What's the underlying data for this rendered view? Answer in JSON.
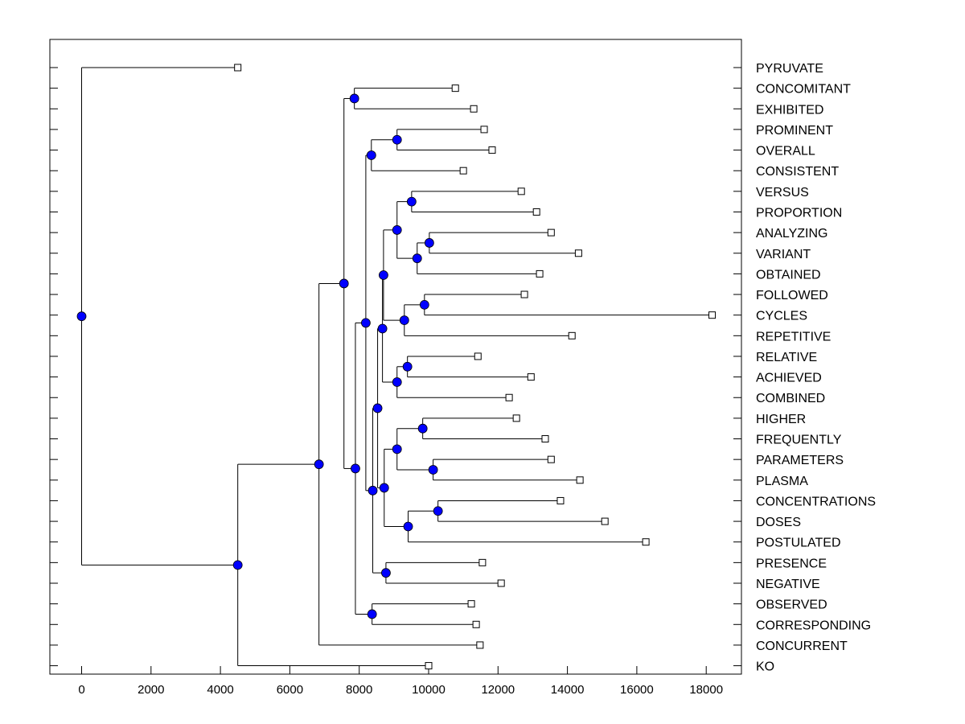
{
  "chart_data": {
    "type": "dendrogram",
    "title": "",
    "xlabel": "",
    "ylabel": "",
    "xlim": [
      -900,
      19000
    ],
    "xticks": [
      0,
      2000,
      4000,
      6000,
      8000,
      10000,
      12000,
      14000,
      16000,
      18000
    ],
    "xtick_labels": [
      "0",
      "2000",
      "4000",
      "6000",
      "8000",
      "10000",
      "12000",
      "14000",
      "16000",
      "18000"
    ],
    "node_color": "#0000ff",
    "leaf_order": [
      "PYRUVATE",
      "CONCOMITANT",
      "EXHIBITED",
      "PROMINENT",
      "OVERALL",
      "CONSISTENT",
      "VERSUS",
      "PROPORTION",
      "ANALYZING",
      "VARIANT",
      "OBTAINED",
      "FOLLOWED",
      "CYCLES",
      "REPETITIVE",
      "RELATIVE",
      "ACHIEVED",
      "COMBINED",
      "HIGHER",
      "FREQUENTLY",
      "PARAMETERS",
      "PLASMA",
      "CONCENTRATIONS",
      "DOSES",
      "POSTULATED",
      "PRESENCE",
      "NEGATIVE",
      "OBSERVED",
      "CORRESPONDING",
      "CONCURRENT",
      "KO"
    ],
    "tree": {
      "value": 0,
      "children": [
        {
          "label": "PYRUVATE",
          "value": 4500
        },
        {
          "value": 4500,
          "children": [
            {
              "value": 6840,
              "children": [
                {
                  "value": 7560,
                  "children": [
                    {
                      "value": 7860,
                      "children": [
                        {
                          "label": "CONCOMITANT",
                          "value": 10770
                        },
                        {
                          "label": "EXHIBITED",
                          "value": 11300
                        }
                      ]
                    },
                    {
                      "value": 7890,
                      "children": [
                        {
                          "value": 8190,
                          "children": [
                            {
                              "value": 8350,
                              "children": [
                                {
                                  "value": 9090,
                                  "children": [
                                    {
                                      "label": "PROMINENT",
                                      "value": 11600
                                    },
                                    {
                                      "label": "OVERALL",
                                      "value": 11830
                                    }
                                  ]
                                },
                                {
                                  "label": "CONSISTENT",
                                  "value": 11000
                                }
                              ]
                            },
                            {
                              "value": 8390,
                              "children": [
                                {
                                  "value": 8530,
                                  "children": [
                                    {
                                      "value": 8670,
                                      "children": [
                                        {
                                          "value": 8700,
                                          "children": [
                                            {
                                              "value": 9090,
                                              "children": [
                                                {
                                                  "value": 9510,
                                                  "children": [
                                                    {
                                                      "label": "VERSUS",
                                                      "value": 12670
                                                    },
                                                    {
                                                      "label": "PROPORTION",
                                                      "value": 13110
                                                    }
                                                  ]
                                                },
                                                {
                                                  "value": 9670,
                                                  "children": [
                                                    {
                                                      "value": 10020,
                                                      "children": [
                                                        {
                                                          "label": "ANALYZING",
                                                          "value": 13530
                                                        },
                                                        {
                                                          "label": "VARIANT",
                                                          "value": 14320
                                                        }
                                                      ]
                                                    },
                                                    {
                                                      "label": "OBTAINED",
                                                      "value": 13200
                                                    }
                                                  ]
                                                }
                                              ]
                                            },
                                            {
                                              "value": 9300,
                                              "children": [
                                                {
                                                  "value": 9880,
                                                  "children": [
                                                    {
                                                      "label": "FOLLOWED",
                                                      "value": 12760
                                                    },
                                                    {
                                                      "label": "CYCLES",
                                                      "value": 18170
                                                    }
                                                  ]
                                                },
                                                {
                                                  "label": "REPETITIVE",
                                                  "value": 14130
                                                }
                                              ]
                                            }
                                          ]
                                        },
                                        {
                                          "value": 9090,
                                          "children": [
                                            {
                                              "value": 9390,
                                              "children": [
                                                {
                                                  "label": "RELATIVE",
                                                  "value": 11420
                                                },
                                                {
                                                  "label": "ACHIEVED",
                                                  "value": 12950
                                                }
                                              ]
                                            },
                                            {
                                              "label": "COMBINED",
                                              "value": 12320
                                            }
                                          ]
                                        }
                                      ]
                                    },
                                    {
                                      "value": 8720,
                                      "children": [
                                        {
                                          "value": 9090,
                                          "children": [
                                            {
                                              "value": 9830,
                                              "children": [
                                                {
                                                  "label": "HIGHER",
                                                  "value": 12530
                                                },
                                                {
                                                  "label": "FREQUENTLY",
                                                  "value": 13360
                                                }
                                              ]
                                            },
                                            {
                                              "value": 10130,
                                              "children": [
                                                {
                                                  "label": "PARAMETERS",
                                                  "value": 13530
                                                },
                                                {
                                                  "label": "PLASMA",
                                                  "value": 14360
                                                }
                                              ]
                                            }
                                          ]
                                        },
                                        {
                                          "value": 9410,
                                          "children": [
                                            {
                                              "value": 10270,
                                              "children": [
                                                {
                                                  "label": "CONCENTRATIONS",
                                                  "value": 13800
                                                },
                                                {
                                                  "label": "DOSES",
                                                  "value": 15080
                                                }
                                              ]
                                            },
                                            {
                                              "label": "POSTULATED",
                                              "value": 16260
                                            }
                                          ]
                                        }
                                      ]
                                    }
                                  ]
                                },
                                {
                                  "value": 8770,
                                  "children": [
                                    {
                                      "label": "PRESENCE",
                                      "value": 11550
                                    },
                                    {
                                      "label": "NEGATIVE",
                                      "value": 12090
                                    }
                                  ]
                                }
                              ]
                            }
                          ]
                        },
                        {
                          "value": 8370,
                          "children": [
                            {
                              "label": "OBSERVED",
                              "value": 11230
                            },
                            {
                              "label": "CORRESPONDING",
                              "value": 11370
                            }
                          ]
                        }
                      ]
                    }
                  ]
                },
                {
                  "label": "CONCURRENT",
                  "value": 11480
                }
              ]
            },
            {
              "label": "KO",
              "value": 10000
            }
          ]
        }
      ]
    }
  }
}
